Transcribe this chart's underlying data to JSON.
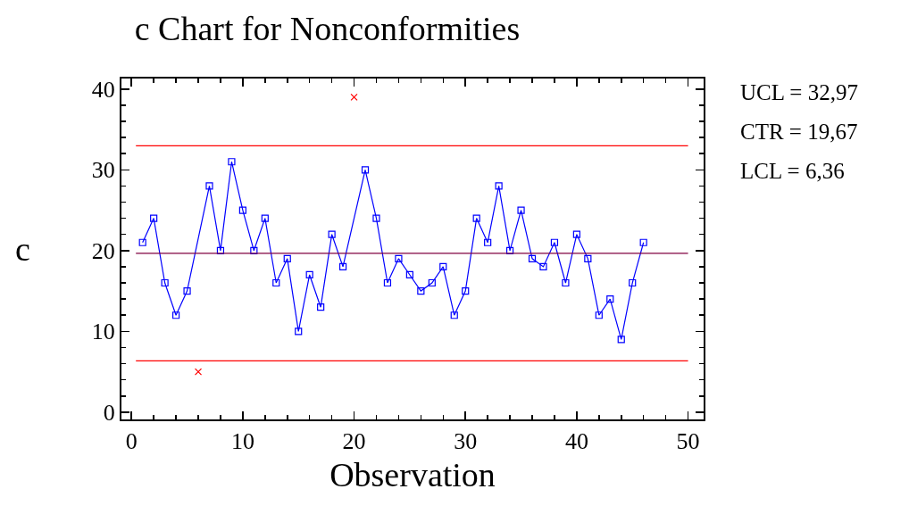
{
  "chart_data": {
    "type": "line",
    "title": "c Chart for Nonconformities",
    "xlabel": "Observation",
    "ylabel": "c",
    "xlim": [
      -0.9,
      51.4
    ],
    "xticks": [
      0,
      10,
      20,
      30,
      40,
      50
    ],
    "ylim": [
      -0.9,
      41.3
    ],
    "yticks": [
      0,
      10,
      20,
      30,
      40
    ],
    "grid": false,
    "series": [
      {
        "color": "#0000ff",
        "marker": "square",
        "x": [
          1,
          2,
          3,
          4,
          5,
          7,
          8,
          9,
          10,
          11,
          12,
          13,
          14,
          15,
          16,
          17,
          18,
          19,
          21,
          22,
          23,
          24,
          25,
          26,
          27,
          28,
          29,
          30,
          31,
          32,
          33,
          34,
          35,
          36,
          37,
          38,
          39,
          40,
          41,
          42,
          43,
          44,
          45,
          46
        ],
        "values": [
          21,
          24,
          16,
          12,
          15,
          28,
          20,
          31,
          25,
          20,
          24,
          16,
          19,
          10,
          17,
          13,
          22,
          18,
          30,
          24,
          16,
          19,
          17,
          15,
          16,
          18,
          12,
          15,
          24,
          21,
          28,
          20,
          25,
          19,
          18,
          21,
          16,
          22,
          19,
          12,
          14,
          9,
          16,
          21
        ]
      },
      {
        "type": "scatter",
        "color": "#ff0000",
        "marker": "cross",
        "x": [
          6,
          20
        ],
        "values": [
          5,
          39
        ]
      }
    ],
    "ref_lines": [
      {
        "axis": "y",
        "value": 32.97,
        "color": "#ff0000"
      },
      {
        "axis": "y",
        "value": 19.67,
        "color": "#800040"
      },
      {
        "axis": "y",
        "value": 6.36,
        "color": "#ff0000"
      }
    ],
    "annotations": [
      "UCL = 32,97",
      "CTR = 19,67",
      "LCL = 6,36"
    ]
  }
}
